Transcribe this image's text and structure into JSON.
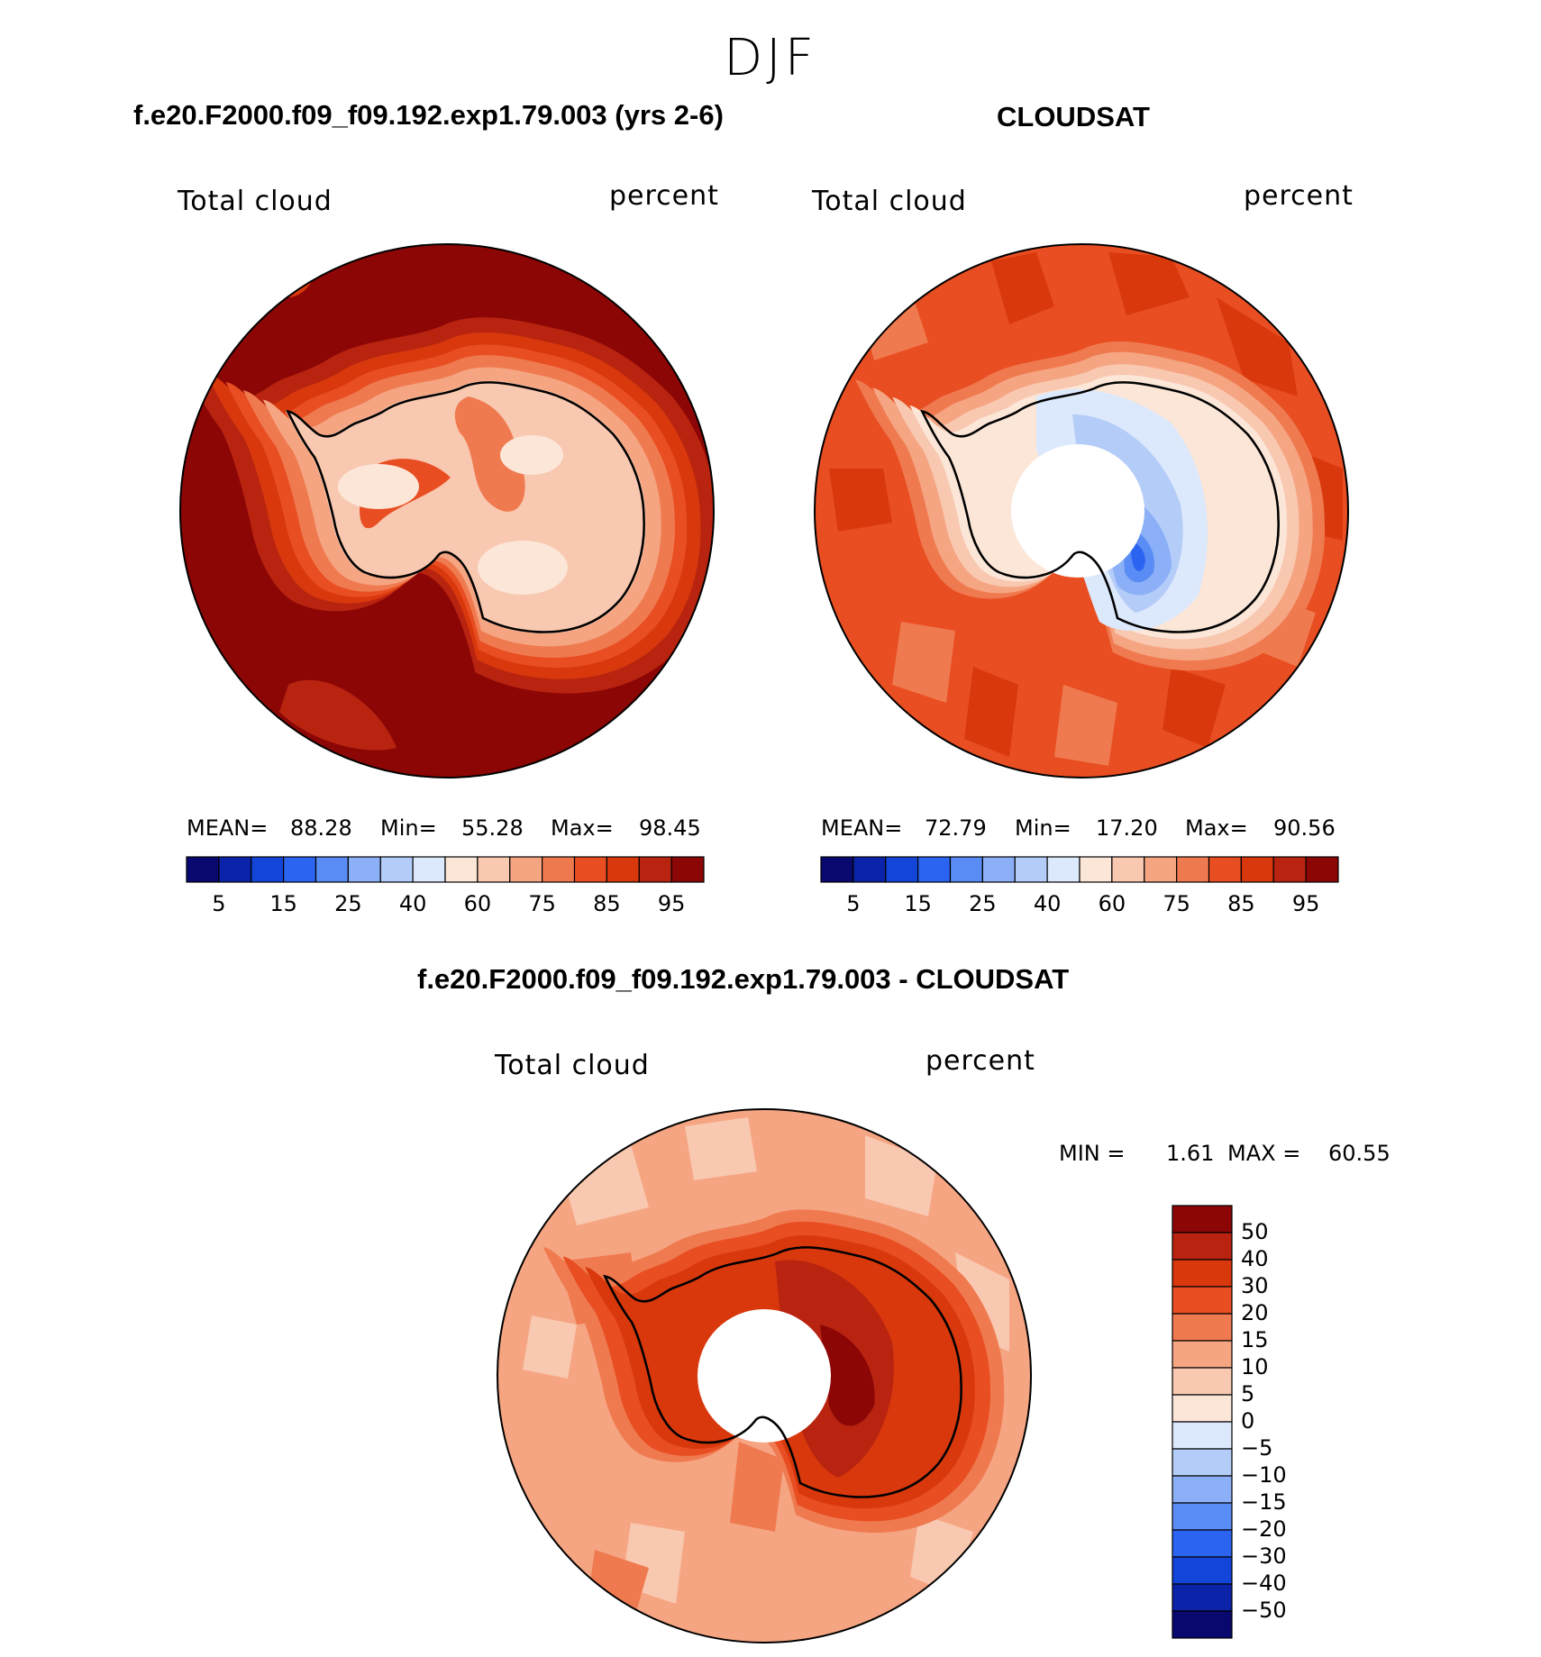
{
  "title": "DJF",
  "panels": [
    {
      "case_title": "f.e20.F2000.f09_f09.192.exp1.79.003 (yrs 2-6)",
      "variable": "Total cloud",
      "units": "percent",
      "mean_label": "MEAN=",
      "mean": "88.28",
      "min_label": "Min=",
      "min": "55.28",
      "max_label": "Max=",
      "max": "98.45"
    },
    {
      "case_title": "CLOUDSAT",
      "variable": "Total cloud",
      "units": "percent",
      "mean_label": "MEAN=",
      "mean": "72.79",
      "min_label": "Min=",
      "min": "17.20",
      "max_label": "Max=",
      "max": "90.56"
    },
    {
      "case_title": "f.e20.F2000.f09_f09.192.exp1.79.003 - CLOUDSAT",
      "variable": "Total cloud",
      "units": "percent",
      "min_label": "MIN =",
      "min": "1.61",
      "max_label": "MAX =",
      "max": "60.55"
    }
  ],
  "colorbar_abs": {
    "colors": [
      "#08086e",
      "#0a23a8",
      "#1245d8",
      "#2a64f0",
      "#5a8cf5",
      "#8cb0f7",
      "#b4ccf8",
      "#dce8fb",
      "#fbe6d8",
      "#f9c8b0",
      "#f5a582",
      "#f07a50",
      "#e84e22",
      "#d8380c",
      "#b82410",
      "#8c0606"
    ],
    "tick_labels": [
      "5",
      "15",
      "25",
      "40",
      "60",
      "75",
      "85",
      "95"
    ]
  },
  "colorbar_diff": {
    "colors": [
      "#08086e",
      "#0a23a8",
      "#1245d8",
      "#2a64f0",
      "#5a8cf5",
      "#8cb0f7",
      "#b4ccf8",
      "#dce8fb",
      "#fbe6d8",
      "#f9c8b0",
      "#f5a582",
      "#f07a50",
      "#e84e22",
      "#d8380c",
      "#b82410",
      "#8c0606"
    ],
    "tick_labels": [
      "50",
      "40",
      "30",
      "20",
      "15",
      "10",
      "5",
      "0",
      "−5",
      "−10",
      "−15",
      "−20",
      "−30",
      "−40",
      "−50"
    ]
  },
  "map_colors": {
    "p1": {
      "ocean": "#8c0606",
      "ring1": "#b82410",
      "ring2": "#d8380c",
      "ring3": "#e84e22",
      "ring4": "#f07a50",
      "ring5": "#f5a582",
      "interior": "#f9c8b0",
      "core": "#fbe6d8"
    },
    "p2": {
      "ocean": "#e84e22",
      "patch": "#d8380c",
      "light": "#f07a50",
      "ring": "#f5a582",
      "ring2": "#f9c8b0",
      "interior": "#fbe6d8",
      "blue1": "#dce8fb",
      "blue2": "#b4ccf8",
      "blue3": "#8cb0f7",
      "blue4": "#5a8cf5",
      "blue5": "#2a64f0"
    },
    "p3": {
      "ocean": "#f5a582",
      "light": "#f9c8b0",
      "mid": "#f07a50",
      "ring": "#e84e22",
      "inner": "#d8380c",
      "core": "#b82410",
      "peak": "#8c0606"
    }
  }
}
